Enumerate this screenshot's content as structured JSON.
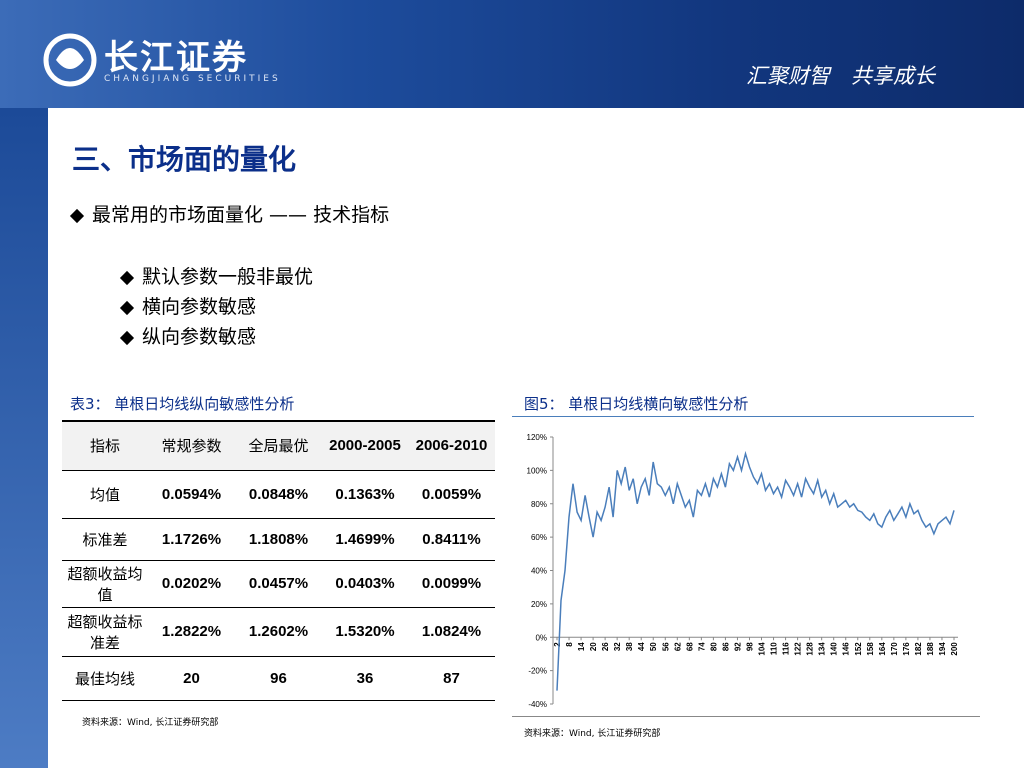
{
  "header": {
    "logo": "长江证券",
    "logo_sub": "CHANGJIANG SECURITIES",
    "slogan": "汇聚财智　共享成长"
  },
  "title": "三、市场面的量化",
  "bullet": "最常用的市场面量化 —— 技术指标",
  "sub_bullets": [
    "默认参数一般非最优",
    "横向参数敏感",
    "纵向参数敏感"
  ],
  "table": {
    "caption": "表3： 单根日均线纵向敏感性分析",
    "header": [
      "指标",
      "常规参数",
      "全局最优",
      "2000-2005",
      "2006-2010"
    ],
    "rows": [
      [
        "均值",
        "0.0594%",
        "0.0848%",
        "0.1363%",
        "0.0059%"
      ],
      [
        "标准差",
        "1.1726%",
        "1.1808%",
        "1.4699%",
        "0.8411%"
      ],
      [
        "超额收益均值",
        "0.0202%",
        "0.0457%",
        "0.0403%",
        "0.0099%"
      ],
      [
        "超额收益标准差",
        "1.2822%",
        "1.2602%",
        "1.5320%",
        "1.0824%"
      ],
      [
        "最佳均线",
        "20",
        "96",
        "36",
        "87"
      ]
    ],
    "source": "资料来源：Wind, 长江证券研究部"
  },
  "figure": {
    "caption": "图5： 单根日均线横向敏感性分析",
    "source": "资料来源：Wind, 长江证券研究部"
  },
  "chart_data": {
    "type": "line",
    "color": "#4a7ebb",
    "x": [
      2,
      4,
      6,
      8,
      10,
      12,
      14,
      16,
      18,
      20,
      22,
      24,
      26,
      28,
      30,
      32,
      34,
      36,
      38,
      40,
      42,
      44,
      46,
      48,
      50,
      52,
      54,
      56,
      58,
      60,
      62,
      64,
      66,
      68,
      70,
      72,
      74,
      76,
      78,
      80,
      82,
      84,
      86,
      88,
      90,
      92,
      94,
      96,
      98,
      100,
      102,
      104,
      106,
      108,
      110,
      112,
      114,
      116,
      118,
      120,
      122,
      124,
      126,
      128,
      130,
      132,
      134,
      136,
      138,
      140,
      142,
      144,
      146,
      148,
      150,
      152,
      154,
      156,
      158,
      160,
      162,
      164,
      166,
      168,
      170,
      172,
      174,
      176,
      178,
      180,
      182,
      184,
      186,
      188,
      190,
      192,
      194,
      196,
      198,
      200
    ],
    "values": [
      -32,
      22,
      40,
      72,
      92,
      75,
      70,
      85,
      72,
      60,
      75,
      70,
      78,
      90,
      72,
      100,
      92,
      102,
      88,
      95,
      80,
      90,
      95,
      85,
      105,
      92,
      90,
      85,
      90,
      80,
      92,
      85,
      78,
      82,
      72,
      88,
      85,
      92,
      84,
      95,
      90,
      98,
      90,
      104,
      100,
      108,
      100,
      110,
      102,
      96,
      92,
      98,
      88,
      92,
      86,
      90,
      84,
      94,
      90,
      85,
      92,
      84,
      95,
      90,
      86,
      94,
      84,
      88,
      80,
      86,
      78,
      80,
      82,
      78,
      80,
      76,
      75,
      72,
      70,
      74,
      68,
      66,
      72,
      76,
      70,
      74,
      78,
      72,
      80,
      74,
      76,
      70,
      66,
      68,
      62,
      68,
      70,
      72,
      68,
      76
    ],
    "xlim": [
      0,
      202
    ],
    "xticks": [
      2,
      8,
      14,
      20,
      26,
      32,
      38,
      44,
      50,
      56,
      62,
      68,
      74,
      80,
      86,
      92,
      98,
      104,
      110,
      116,
      122,
      128,
      134,
      140,
      146,
      152,
      158,
      164,
      170,
      176,
      182,
      188,
      194,
      200
    ],
    "ylim": [
      -40,
      120
    ],
    "yticks": [
      {
        "value": -40,
        "label": "-40%"
      },
      {
        "value": -20,
        "label": "-20%"
      },
      {
        "value": 0,
        "label": "0%"
      },
      {
        "value": 20,
        "label": "20%"
      },
      {
        "value": 40,
        "label": "40%"
      },
      {
        "value": 60,
        "label": "60%"
      },
      {
        "value": 80,
        "label": "80%"
      },
      {
        "value": 100,
        "label": "100%"
      },
      {
        "value": 120,
        "label": "120%"
      }
    ]
  }
}
